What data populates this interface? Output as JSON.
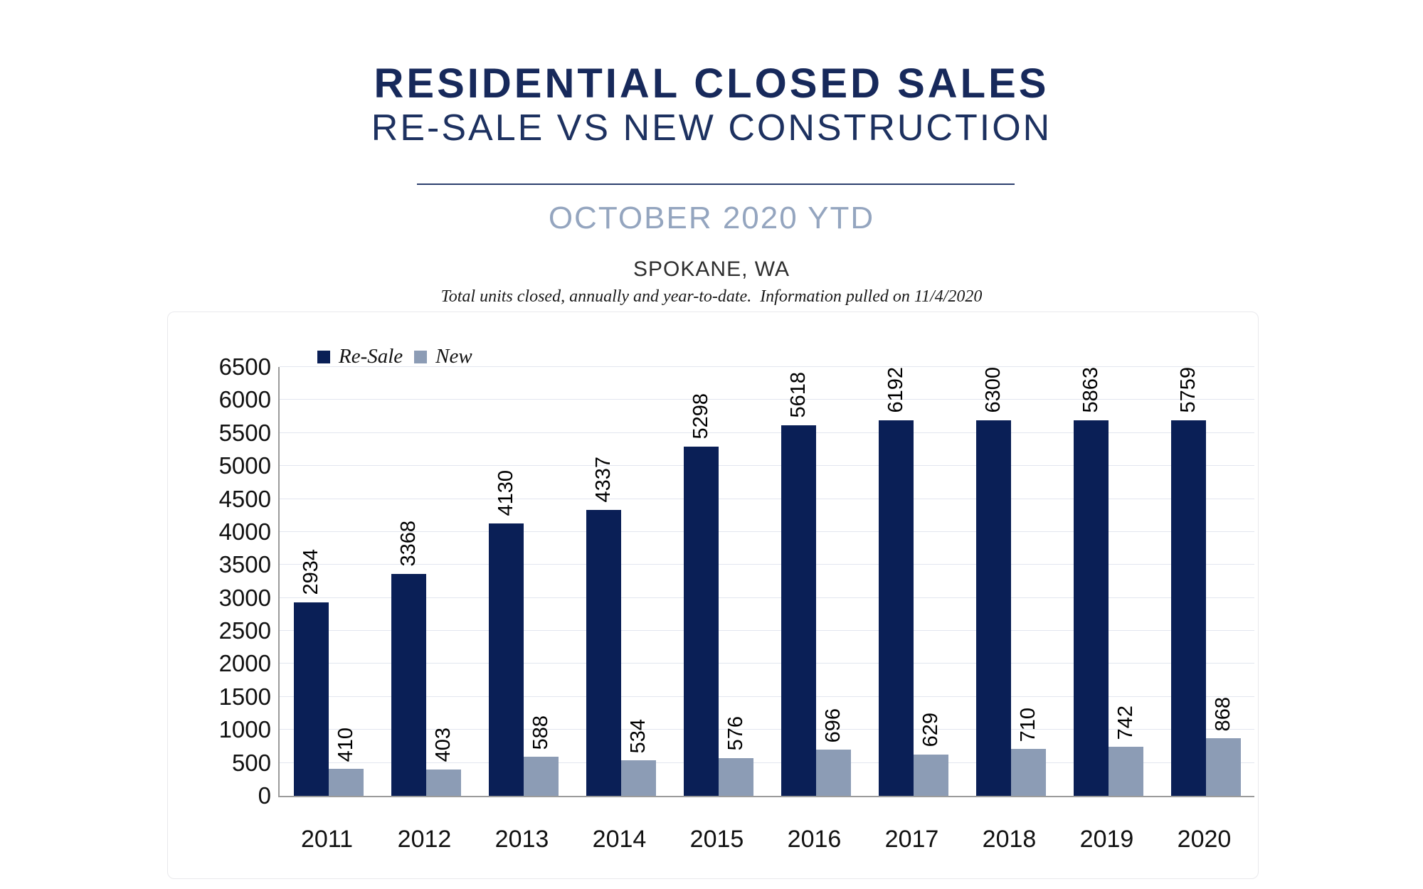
{
  "header": {
    "title": "RESIDENTIAL CLOSED SALES",
    "subtitle": "RE-SALE VS NEW CONSTRUCTION",
    "period": "OCTOBER 2020 YTD",
    "location": "SPOKANE, WA",
    "note": "Total units closed, annually and year-to-date.  Information pulled on 11/4/2020"
  },
  "chart_data": {
    "type": "bar",
    "title": "RESIDENTIAL CLOSED SALES",
    "subtitle": "RE-SALE VS NEW CONSTRUCTION",
    "period": "OCTOBER 2020 YTD",
    "location": "SPOKANE, WA",
    "categories": [
      "2011",
      "2012",
      "2013",
      "2014",
      "2015",
      "2016",
      "2017",
      "2018",
      "2019",
      "2020"
    ],
    "series": [
      {
        "name": "Re-Sale",
        "color": "#0A1F56",
        "values": [
          2934,
          3368,
          4130,
          4337,
          5298,
          5618,
          6192,
          6300,
          5863,
          5759
        ]
      },
      {
        "name": "New",
        "color": "#8C9CB5",
        "values": [
          410,
          403,
          588,
          534,
          576,
          696,
          629,
          710,
          742,
          868
        ]
      }
    ],
    "xlabel": "",
    "ylabel": "",
    "ylim": [
      0,
      6500
    ],
    "ytick_step": 500,
    "grid": "horizontal",
    "legend_position": "top-left-inside",
    "value_labels": "rotated-90-above-bars"
  },
  "style": {
    "title_color": "#17295B",
    "period_color": "#94A5BF",
    "grid_color": "#E2E6EF",
    "axis_color": "#9B9B9B",
    "resale_color": "#0A1F56",
    "new_color": "#8C9CB5"
  }
}
